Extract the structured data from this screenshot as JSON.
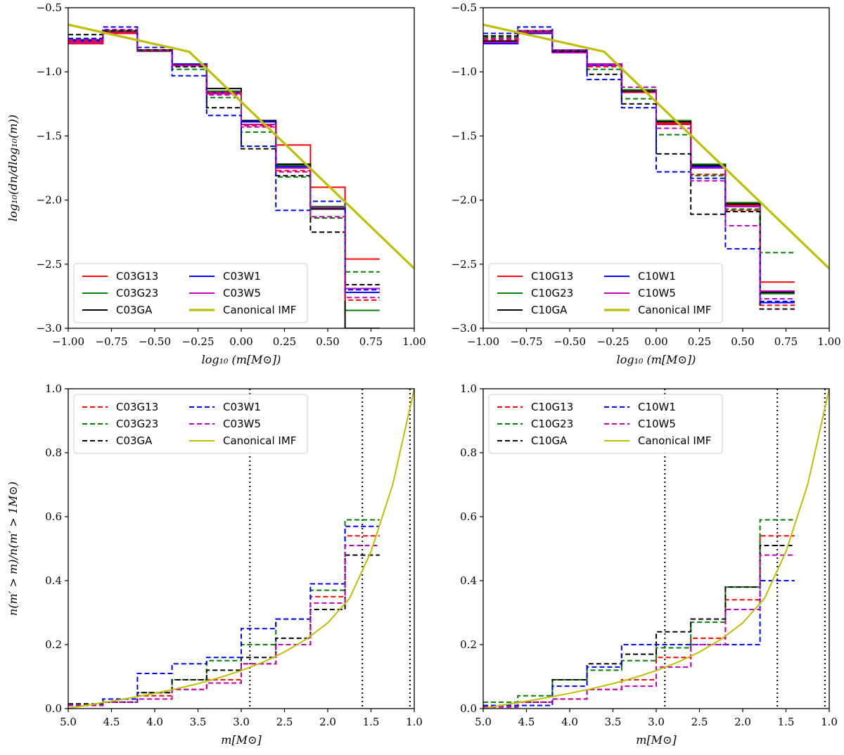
{
  "figure": {
    "panel_order": [
      "top-left",
      "top-right",
      "bottom-left",
      "bottom-right"
    ]
  },
  "colors": {
    "G13": "#ff0000",
    "G23": "#008000",
    "GA": "#000000",
    "W1": "#0000ff",
    "W5": "#bf00bf",
    "IMF": "#bfbf00"
  },
  "chart_data": [
    {
      "type": "line",
      "panel": "top-left",
      "xlabel": "log₁₀ (m[M⊙])",
      "ylabel": "log₁₀(dn/dlog₁₀(m))",
      "xlim": [
        -1.0,
        1.0
      ],
      "ylim": [
        -3.0,
        -0.5
      ],
      "xticks": [
        -1.0,
        -0.75,
        -0.5,
        -0.25,
        0.0,
        0.25,
        0.5,
        0.75,
        1.0
      ],
      "xtick_labels": [
        "−1.00",
        "−0.75",
        "−0.50",
        "−0.25",
        "0.00",
        "0.25",
        "0.50",
        "0.75",
        "1.00"
      ],
      "yticks": [
        -3.0,
        -2.5,
        -2.0,
        -1.5,
        -1.0,
        -0.5
      ],
      "ytick_labels": [
        "−3.0",
        "−2.5",
        "−2.0",
        "−1.5",
        "−1.0",
        "−0.5"
      ],
      "bin_edges": [
        -1.0,
        -0.8,
        -0.6,
        -0.4,
        -0.2,
        0.0,
        0.2,
        0.4,
        0.6,
        0.8
      ],
      "legend": {
        "location": "lower-left",
        "columns": 2
      },
      "series": [
        {
          "name": "C03G13",
          "color_key": "G13",
          "style": "solid",
          "values": [
            -0.78,
            -0.7,
            -0.83,
            -0.95,
            -1.17,
            -1.41,
            -1.57,
            -1.9,
            -2.46
          ]
        },
        {
          "name": "C03G23",
          "color_key": "G23",
          "style": "solid",
          "values": [
            -0.76,
            -0.69,
            -0.83,
            -0.94,
            -1.15,
            -1.39,
            -1.73,
            -2.05,
            -2.86
          ]
        },
        {
          "name": "C03GA",
          "color_key": "GA",
          "style": "solid",
          "values": [
            -0.75,
            -0.69,
            -0.83,
            -0.94,
            -1.13,
            -1.38,
            -1.72,
            -2.07,
            -3.0
          ]
        },
        {
          "name": "C03W1",
          "color_key": "W1",
          "style": "solid",
          "values": [
            -0.76,
            -0.69,
            -0.83,
            -0.94,
            -1.16,
            -1.39,
            -1.74,
            -2.06,
            -2.72
          ]
        },
        {
          "name": "C03W5",
          "color_key": "W5",
          "style": "solid",
          "values": [
            -0.77,
            -0.69,
            -0.84,
            -0.95,
            -1.17,
            -1.41,
            -1.75,
            -2.06,
            -2.69
          ]
        },
        {
          "name": "C03G13 (dashed)",
          "color_key": "G13",
          "style": "dashed",
          "values": [
            -0.76,
            -0.69,
            -0.83,
            -0.95,
            -1.16,
            -1.42,
            -1.77,
            -2.14,
            -2.78
          ]
        },
        {
          "name": "C03G23 (dashed)",
          "color_key": "G23",
          "style": "dashed",
          "values": [
            -0.74,
            -0.68,
            -0.84,
            -0.98,
            -1.2,
            -1.47,
            -1.82,
            -2.14,
            -2.56
          ]
        },
        {
          "name": "C03GA (dashed)",
          "color_key": "GA",
          "style": "dashed",
          "values": [
            -0.71,
            -0.68,
            -0.83,
            -0.96,
            -1.28,
            -1.6,
            -1.81,
            -2.25,
            -2.66
          ]
        },
        {
          "name": "C03W1 (dashed)",
          "color_key": "W1",
          "style": "dashed",
          "values": [
            -0.74,
            -0.65,
            -0.81,
            -1.03,
            -1.34,
            -1.58,
            -2.08,
            -2.01,
            -2.7
          ]
        },
        {
          "name": "C03W5 (dashed)",
          "color_key": "W5",
          "style": "dashed",
          "values": [
            -0.75,
            -0.67,
            -0.84,
            -0.95,
            -1.18,
            -1.43,
            -1.78,
            -2.13,
            -2.76
          ]
        },
        {
          "name": "Canonical IMF",
          "color_key": "IMF",
          "style": "thick",
          "x": [
            -1.0,
            -0.301,
            1.0
          ],
          "y": [
            -0.632,
            -0.843,
            -2.534
          ]
        }
      ],
      "legend_entries": [
        {
          "label": "C03G13",
          "color_key": "G13",
          "style": "solid"
        },
        {
          "label": "C03G23",
          "color_key": "G23",
          "style": "solid"
        },
        {
          "label": "C03GA",
          "color_key": "GA",
          "style": "solid"
        },
        {
          "label": "C03W1",
          "color_key": "W1",
          "style": "solid"
        },
        {
          "label": "C03W5",
          "color_key": "W5",
          "style": "solid"
        },
        {
          "label": "Canonical IMF",
          "color_key": "IMF",
          "style": "thick"
        }
      ]
    },
    {
      "type": "line",
      "panel": "top-right",
      "xlabel": "log₁₀ (m[M⊙])",
      "ylabel": "",
      "xlim": [
        -1.0,
        1.0
      ],
      "ylim": [
        -3.0,
        -0.5
      ],
      "xticks": [
        -1.0,
        -0.75,
        -0.5,
        -0.25,
        0.0,
        0.25,
        0.5,
        0.75,
        1.0
      ],
      "xtick_labels": [
        "−1.00",
        "−0.75",
        "−0.50",
        "−0.25",
        "0.00",
        "0.25",
        "0.50",
        "0.75",
        "1.00"
      ],
      "yticks": [
        -3.0,
        -2.5,
        -2.0,
        -1.5,
        -1.0,
        -0.5
      ],
      "ytick_labels": [
        "−3.0",
        "−2.5",
        "−2.0",
        "−1.5",
        "−1.0",
        "−0.5"
      ],
      "bin_edges": [
        -1.0,
        -0.8,
        -0.6,
        -0.4,
        -0.2,
        0.0,
        0.2,
        0.4,
        0.6,
        0.8
      ],
      "legend": {
        "location": "lower-left",
        "columns": 2
      },
      "series": [
        {
          "name": "C10G13",
          "color_key": "G13",
          "style": "solid",
          "values": [
            -0.77,
            -0.69,
            -0.85,
            -0.94,
            -1.16,
            -1.4,
            -1.74,
            -2.04,
            -2.64
          ]
        },
        {
          "name": "C10G23",
          "color_key": "G23",
          "style": "solid",
          "values": [
            -0.76,
            -0.69,
            -0.84,
            -0.94,
            -1.14,
            -1.38,
            -1.72,
            -2.02,
            -2.73
          ]
        },
        {
          "name": "C10GA",
          "color_key": "GA",
          "style": "solid",
          "values": [
            -0.76,
            -0.69,
            -0.84,
            -0.94,
            -1.15,
            -1.39,
            -1.73,
            -2.03,
            -2.72
          ]
        },
        {
          "name": "C10W1",
          "color_key": "W1",
          "style": "solid",
          "values": [
            -0.78,
            -0.7,
            -0.85,
            -0.95,
            -1.16,
            -1.41,
            -1.74,
            -2.05,
            -2.8
          ]
        },
        {
          "name": "C10W5",
          "color_key": "W5",
          "style": "solid",
          "values": [
            -0.77,
            -0.69,
            -0.85,
            -0.94,
            -1.16,
            -1.41,
            -1.75,
            -2.05,
            -2.71
          ]
        },
        {
          "name": "C10G13 (dashed)",
          "color_key": "G13",
          "style": "dashed",
          "values": [
            -0.75,
            -0.69,
            -0.84,
            -0.96,
            -1.16,
            -1.41,
            -1.8,
            -2.08,
            -2.82
          ]
        },
        {
          "name": "C10G23 (dashed)",
          "color_key": "G23",
          "style": "dashed",
          "values": [
            -0.73,
            -0.68,
            -0.83,
            -0.98,
            -1.21,
            -1.49,
            -1.81,
            -2.07,
            -2.41
          ]
        },
        {
          "name": "C10GA (dashed)",
          "color_key": "GA",
          "style": "dashed",
          "values": [
            -0.72,
            -0.68,
            -0.84,
            -1.02,
            -1.25,
            -1.64,
            -2.11,
            -2.09,
            -2.85
          ]
        },
        {
          "name": "C10W1 (dashed)",
          "color_key": "W1",
          "style": "dashed",
          "values": [
            -0.7,
            -0.65,
            -0.83,
            -1.06,
            -1.28,
            -1.78,
            -1.83,
            -2.38,
            -2.79
          ]
        },
        {
          "name": "C10W5 (dashed)",
          "color_key": "W5",
          "style": "dashed",
          "values": [
            -0.74,
            -0.68,
            -0.83,
            -0.95,
            -1.12,
            -1.44,
            -1.85,
            -2.2,
            -2.77
          ]
        },
        {
          "name": "Canonical IMF",
          "color_key": "IMF",
          "style": "thick",
          "x": [
            -1.0,
            -0.301,
            1.0
          ],
          "y": [
            -0.632,
            -0.843,
            -2.534
          ]
        }
      ],
      "legend_entries": [
        {
          "label": "C10G13",
          "color_key": "G13",
          "style": "solid"
        },
        {
          "label": "C10G23",
          "color_key": "G23",
          "style": "solid"
        },
        {
          "label": "C10GA",
          "color_key": "GA",
          "style": "solid"
        },
        {
          "label": "C10W1",
          "color_key": "W1",
          "style": "solid"
        },
        {
          "label": "C10W5",
          "color_key": "W5",
          "style": "solid"
        },
        {
          "label": "Canonical IMF",
          "color_key": "IMF",
          "style": "thick"
        }
      ]
    },
    {
      "type": "line",
      "panel": "bottom-left",
      "xlabel": "m[M⊙]",
      "ylabel": "n(m′ > m)/n(m′ > 1M⊙)",
      "xlim": [
        5.0,
        1.0
      ],
      "ylim": [
        0.0,
        1.0
      ],
      "xticks": [
        5.0,
        4.5,
        4.0,
        3.5,
        3.0,
        2.5,
        2.0,
        1.5,
        1.0
      ],
      "xtick_labels": [
        "5.0",
        "4.5",
        "4.0",
        "3.5",
        "3.0",
        "2.5",
        "2.0",
        "1.5",
        "1.0"
      ],
      "yticks": [
        0.0,
        0.2,
        0.4,
        0.6,
        0.8,
        1.0
      ],
      "ytick_labels": [
        "0.0",
        "0.2",
        "0.4",
        "0.6",
        "0.8",
        "1.0"
      ],
      "bin_edges": [
        5.0,
        4.6,
        4.2,
        3.8,
        3.4,
        3.0,
        2.6,
        2.2,
        1.8,
        1.4
      ],
      "vlines": [
        2.9,
        1.6,
        1.05
      ],
      "legend": {
        "location": "upper-left",
        "columns": 2
      },
      "series": [
        {
          "name": "C03G13",
          "color_key": "G13",
          "style": "dashed",
          "values": [
            0.01,
            0.02,
            0.04,
            0.06,
            0.09,
            0.14,
            0.2,
            0.35,
            0.54
          ]
        },
        {
          "name": "C03G23",
          "color_key": "G23",
          "style": "dashed",
          "values": [
            0.01,
            0.02,
            0.05,
            0.09,
            0.15,
            0.2,
            0.28,
            0.37,
            0.59
          ]
        },
        {
          "name": "C03GA",
          "color_key": "GA",
          "style": "dashed",
          "values": [
            0.015,
            0.02,
            0.05,
            0.09,
            0.12,
            0.16,
            0.22,
            0.31,
            0.48
          ]
        },
        {
          "name": "C03W1",
          "color_key": "W1",
          "style": "dashed",
          "values": [
            0.01,
            0.03,
            0.11,
            0.14,
            0.16,
            0.25,
            0.28,
            0.39,
            0.57
          ]
        },
        {
          "name": "C03W5",
          "color_key": "W5",
          "style": "dashed",
          "values": [
            0.01,
            0.02,
            0.03,
            0.06,
            0.08,
            0.14,
            0.2,
            0.33,
            0.51
          ]
        },
        {
          "name": "Canonical IMF",
          "color_key": "IMF",
          "style": "curve",
          "x": [
            5.0,
            4.75,
            4.5,
            4.25,
            4.0,
            3.75,
            3.5,
            3.25,
            3.0,
            2.75,
            2.5,
            2.25,
            2.0,
            1.75,
            1.5,
            1.25,
            1.0
          ],
          "y": [
            0.001,
            0.012,
            0.023,
            0.035,
            0.048,
            0.062,
            0.078,
            0.097,
            0.119,
            0.145,
            0.177,
            0.217,
            0.268,
            0.344,
            0.491,
            0.7,
            1.0
          ]
        }
      ],
      "legend_entries": [
        {
          "label": "C03G13",
          "color_key": "G13",
          "style": "dashed"
        },
        {
          "label": "C03G23",
          "color_key": "G23",
          "style": "dashed"
        },
        {
          "label": "C03GA",
          "color_key": "GA",
          "style": "dashed"
        },
        {
          "label": "C03W1",
          "color_key": "W1",
          "style": "dashed"
        },
        {
          "label": "C03W5",
          "color_key": "W5",
          "style": "dashed"
        },
        {
          "label": "Canonical IMF",
          "color_key": "IMF",
          "style": "curve"
        }
      ]
    },
    {
      "type": "line",
      "panel": "bottom-right",
      "xlabel": "m[M⊙]",
      "ylabel": "",
      "xlim": [
        5.0,
        1.0
      ],
      "ylim": [
        0.0,
        1.0
      ],
      "xticks": [
        5.0,
        4.5,
        4.0,
        3.5,
        3.0,
        2.5,
        2.0,
        1.5,
        1.0
      ],
      "xtick_labels": [
        "5.0",
        "4.5",
        "4.0",
        "3.5",
        "3.0",
        "2.5",
        "2.0",
        "1.5",
        "1.0"
      ],
      "yticks": [
        0.0,
        0.2,
        0.4,
        0.6,
        0.8,
        1.0
      ],
      "ytick_labels": [
        "0.0",
        "0.2",
        "0.4",
        "0.6",
        "0.8",
        "1.0"
      ],
      "bin_edges": [
        5.0,
        4.6,
        4.2,
        3.8,
        3.4,
        3.0,
        2.6,
        2.2,
        1.8,
        1.4
      ],
      "vlines": [
        2.9,
        1.6,
        1.05
      ],
      "legend": {
        "location": "upper-left",
        "columns": 2
      },
      "series": [
        {
          "name": "C10G13",
          "color_key": "G13",
          "style": "dashed",
          "values": [
            0.005,
            0.02,
            0.03,
            0.06,
            0.09,
            0.16,
            0.22,
            0.34,
            0.54
          ]
        },
        {
          "name": "C10G23",
          "color_key": "G23",
          "style": "dashed",
          "values": [
            0.02,
            0.04,
            0.09,
            0.12,
            0.15,
            0.19,
            0.27,
            0.38,
            0.59
          ]
        },
        {
          "name": "C10GA",
          "color_key": "GA",
          "style": "dashed",
          "values": [
            0.01,
            0.02,
            0.09,
            0.14,
            0.17,
            0.24,
            0.28,
            0.38,
            0.51
          ]
        },
        {
          "name": "C10W1",
          "color_key": "W1",
          "style": "dashed",
          "values": [
            0.01,
            0.01,
            0.07,
            0.13,
            0.2,
            0.2,
            0.2,
            0.2,
            0.4
          ]
        },
        {
          "name": "C10W5",
          "color_key": "W5",
          "style": "dashed",
          "values": [
            0.005,
            0.02,
            0.03,
            0.06,
            0.07,
            0.13,
            0.2,
            0.31,
            0.48
          ]
        },
        {
          "name": "Canonical IMF",
          "color_key": "IMF",
          "style": "curve",
          "x": [
            5.0,
            4.75,
            4.5,
            4.25,
            4.0,
            3.75,
            3.5,
            3.25,
            3.0,
            2.75,
            2.5,
            2.25,
            2.0,
            1.75,
            1.5,
            1.25,
            1.0
          ],
          "y": [
            0.001,
            0.012,
            0.023,
            0.035,
            0.048,
            0.062,
            0.078,
            0.097,
            0.119,
            0.145,
            0.177,
            0.217,
            0.268,
            0.344,
            0.491,
            0.7,
            1.0
          ]
        }
      ],
      "legend_entries": [
        {
          "label": "C10G13",
          "color_key": "G13",
          "style": "dashed"
        },
        {
          "label": "C10G23",
          "color_key": "G23",
          "style": "dashed"
        },
        {
          "label": "C10GA",
          "color_key": "GA",
          "style": "dashed"
        },
        {
          "label": "C10W1",
          "color_key": "W1",
          "style": "dashed"
        },
        {
          "label": "C10W5",
          "color_key": "W5",
          "style": "dashed"
        },
        {
          "label": "Canonical IMF",
          "color_key": "IMF",
          "style": "curve"
        }
      ]
    }
  ]
}
